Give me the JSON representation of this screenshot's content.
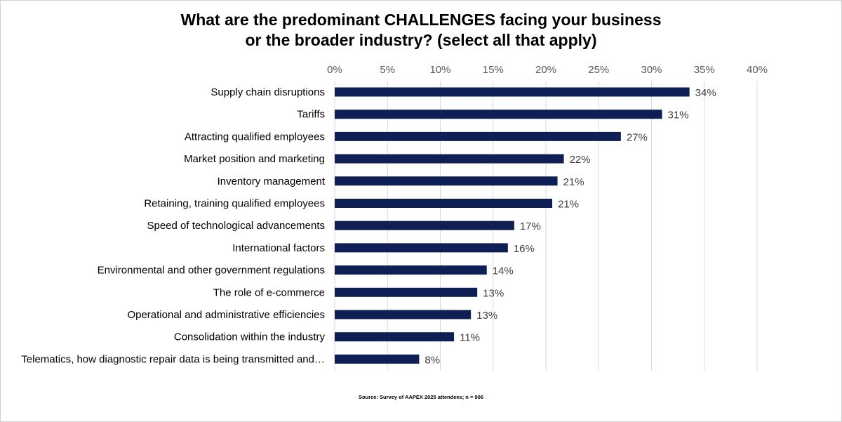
{
  "chart_data": {
    "type": "bar",
    "orientation": "horizontal",
    "title_lines": [
      "What are the predominant CHALLENGES facing your business",
      "or the broader industry? (select all that apply)"
    ],
    "categories": [
      "Supply chain disruptions",
      "Tariffs",
      "Attracting qualified employees",
      "Market position and marketing",
      "Inventory management",
      "Retaining, training qualified employees",
      "Speed of technological advancements",
      "International factors",
      "Environmental and other government regulations",
      "The role of e-commerce",
      "Operational and administrative efficiencies",
      "Consolidation within the industry",
      "Telematics, how diagnostic repair data is being transmitted and…"
    ],
    "values": [
      33.6,
      31.0,
      27.1,
      21.7,
      21.1,
      20.6,
      17.0,
      16.4,
      14.4,
      13.5,
      12.9,
      11.3,
      8.0
    ],
    "data_labels": [
      "34%",
      "31%",
      "27%",
      "22%",
      "21%",
      "21%",
      "17%",
      "16%",
      "14%",
      "13%",
      "13%",
      "11%",
      "8%"
    ],
    "xlim": [
      0,
      40
    ],
    "x_ticks": [
      0,
      5,
      10,
      15,
      20,
      25,
      30,
      35,
      40
    ],
    "x_tick_labels": [
      "0%",
      "5%",
      "10%",
      "15%",
      "20%",
      "25%",
      "30%",
      "35%",
      "40%"
    ],
    "axis_position": "top",
    "grid": true,
    "bar_color": "#0e1f56",
    "grid_color": "#d9d9d9"
  },
  "source": "Source: Survey of AAPEX 2025 attendees; n = 906"
}
